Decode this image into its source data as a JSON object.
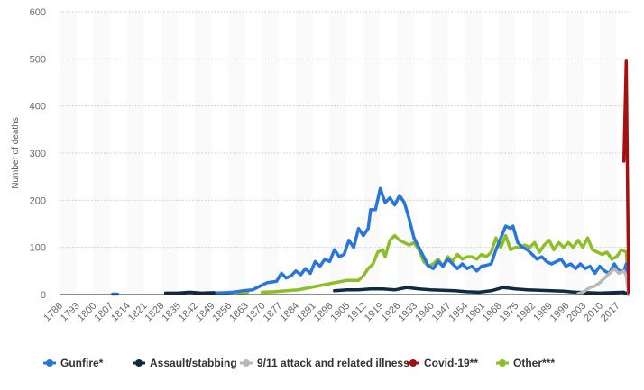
{
  "chart_data": {
    "type": "line",
    "title": "",
    "xlabel": "",
    "ylabel": "Number of deaths",
    "xlim": [
      1786,
      2022
    ],
    "ylim": [
      0,
      600
    ],
    "yticks": [
      0,
      100,
      200,
      300,
      400,
      500,
      600
    ],
    "xticks": [
      "1786",
      "1793",
      "1800",
      "1807",
      "1814",
      "1821",
      "1828",
      "1835",
      "1842",
      "1849",
      "1856",
      "1863",
      "1870",
      "1877",
      "1884",
      "1891",
      "1898",
      "1905",
      "1912",
      "1919",
      "1926",
      "1933",
      "1940",
      "1947",
      "1954",
      "1961",
      "1968",
      "1975",
      "1982",
      "1989",
      "1996",
      "2003",
      "2010",
      "2017"
    ],
    "grid": true,
    "legend_position": "bottom",
    "series": [
      {
        "name": "Gunfire*",
        "color": "#2876dd",
        "points": [
          [
            1791,
            1
          ],
          [
            1808,
            1
          ],
          [
            1810,
            1
          ],
          [
            1850,
            3
          ],
          [
            1855,
            4
          ],
          [
            1858,
            5
          ],
          [
            1862,
            8
          ],
          [
            1866,
            10
          ],
          [
            1870,
            20
          ],
          [
            1872,
            25
          ],
          [
            1876,
            28
          ],
          [
            1878,
            45
          ],
          [
            1880,
            35
          ],
          [
            1882,
            40
          ],
          [
            1884,
            50
          ],
          [
            1886,
            42
          ],
          [
            1888,
            55
          ],
          [
            1890,
            45
          ],
          [
            1892,
            70
          ],
          [
            1894,
            60
          ],
          [
            1896,
            75
          ],
          [
            1898,
            70
          ],
          [
            1900,
            95
          ],
          [
            1902,
            80
          ],
          [
            1904,
            85
          ],
          [
            1906,
            115
          ],
          [
            1908,
            100
          ],
          [
            1910,
            140
          ],
          [
            1912,
            125
          ],
          [
            1914,
            140
          ],
          [
            1915,
            180
          ],
          [
            1917,
            180
          ],
          [
            1919,
            225
          ],
          [
            1921,
            195
          ],
          [
            1923,
            205
          ],
          [
            1925,
            190
          ],
          [
            1927,
            210
          ],
          [
            1929,
            195
          ],
          [
            1931,
            160
          ],
          [
            1933,
            120
          ],
          [
            1935,
            100
          ],
          [
            1937,
            80
          ],
          [
            1939,
            60
          ],
          [
            1941,
            55
          ],
          [
            1943,
            70
          ],
          [
            1945,
            60
          ],
          [
            1947,
            75
          ],
          [
            1949,
            65
          ],
          [
            1951,
            55
          ],
          [
            1953,
            65
          ],
          [
            1955,
            55
          ],
          [
            1957,
            60
          ],
          [
            1959,
            50
          ],
          [
            1961,
            60
          ],
          [
            1963,
            62
          ],
          [
            1965,
            65
          ],
          [
            1967,
            95
          ],
          [
            1969,
            120
          ],
          [
            1971,
            145
          ],
          [
            1973,
            140
          ],
          [
            1974,
            145
          ],
          [
            1976,
            110
          ],
          [
            1978,
            100
          ],
          [
            1980,
            95
          ],
          [
            1982,
            85
          ],
          [
            1984,
            75
          ],
          [
            1986,
            80
          ],
          [
            1988,
            70
          ],
          [
            1990,
            65
          ],
          [
            1992,
            70
          ],
          [
            1994,
            75
          ],
          [
            1996,
            60
          ],
          [
            1998,
            65
          ],
          [
            2000,
            55
          ],
          [
            2002,
            65
          ],
          [
            2004,
            55
          ],
          [
            2006,
            60
          ],
          [
            2008,
            45
          ],
          [
            2010,
            60
          ],
          [
            2012,
            50
          ],
          [
            2014,
            45
          ],
          [
            2016,
            65
          ],
          [
            2018,
            50
          ],
          [
            2020,
            50
          ],
          [
            2021,
            65
          ],
          [
            2022,
            5
          ]
        ]
      },
      {
        "name": "Assault/stabbing",
        "color": "#0f2a45",
        "points": [
          [
            1824,
            2
          ],
          [
            1830,
            3
          ],
          [
            1835,
            3
          ],
          [
            1840,
            5
          ],
          [
            1845,
            3
          ],
          [
            1850,
            4
          ],
          [
            1860,
            5
          ],
          [
            1870,
            4
          ],
          [
            1880,
            5
          ],
          [
            1890,
            6
          ],
          [
            1900,
            8
          ],
          [
            1905,
            10
          ],
          [
            1910,
            10
          ],
          [
            1915,
            12
          ],
          [
            1920,
            12
          ],
          [
            1925,
            10
          ],
          [
            1930,
            15
          ],
          [
            1935,
            12
          ],
          [
            1940,
            10
          ],
          [
            1945,
            9
          ],
          [
            1950,
            8
          ],
          [
            1955,
            6
          ],
          [
            1960,
            5
          ],
          [
            1965,
            8
          ],
          [
            1970,
            15
          ],
          [
            1975,
            12
          ],
          [
            1980,
            10
          ],
          [
            1985,
            9
          ],
          [
            1990,
            8
          ],
          [
            1995,
            7
          ],
          [
            2000,
            5
          ],
          [
            2005,
            4
          ],
          [
            2010,
            3
          ],
          [
            2015,
            4
          ],
          [
            2020,
            5
          ],
          [
            2022,
            0
          ]
        ]
      },
      {
        "name": "9/11 attack and related illness",
        "color": "#b8b8b8",
        "points": [
          [
            2001,
            2
          ],
          [
            2003,
            5
          ],
          [
            2006,
            15
          ],
          [
            2008,
            18
          ],
          [
            2010,
            25
          ],
          [
            2013,
            40
          ],
          [
            2016,
            55
          ],
          [
            2018,
            45
          ],
          [
            2020,
            50
          ],
          [
            2021,
            40
          ],
          [
            2022,
            0
          ]
        ]
      },
      {
        "name": "Covid-19**",
        "color": "#a50f0f",
        "points": [
          [
            2020,
            283
          ],
          [
            2021,
            495
          ],
          [
            2022,
            5
          ]
        ]
      },
      {
        "name": "Other***",
        "color": "#8cbf26",
        "points": [
          [
            1850,
            3
          ],
          [
            1860,
            4
          ],
          [
            1864,
            5
          ],
          [
            1870,
            5
          ],
          [
            1875,
            6
          ],
          [
            1880,
            8
          ],
          [
            1885,
            10
          ],
          [
            1890,
            15
          ],
          [
            1895,
            20
          ],
          [
            1900,
            25
          ],
          [
            1905,
            30
          ],
          [
            1910,
            30
          ],
          [
            1912,
            40
          ],
          [
            1914,
            55
          ],
          [
            1916,
            65
          ],
          [
            1918,
            90
          ],
          [
            1920,
            95
          ],
          [
            1921,
            80
          ],
          [
            1923,
            115
          ],
          [
            1925,
            125
          ],
          [
            1927,
            115
          ],
          [
            1929,
            110
          ],
          [
            1931,
            105
          ],
          [
            1933,
            110
          ],
          [
            1935,
            95
          ],
          [
            1937,
            70
          ],
          [
            1939,
            60
          ],
          [
            1941,
            65
          ],
          [
            1943,
            75
          ],
          [
            1945,
            60
          ],
          [
            1947,
            80
          ],
          [
            1949,
            70
          ],
          [
            1951,
            85
          ],
          [
            1953,
            75
          ],
          [
            1955,
            80
          ],
          [
            1957,
            80
          ],
          [
            1959,
            75
          ],
          [
            1961,
            85
          ],
          [
            1963,
            80
          ],
          [
            1965,
            90
          ],
          [
            1967,
            120
          ],
          [
            1969,
            100
          ],
          [
            1971,
            125
          ],
          [
            1973,
            95
          ],
          [
            1975,
            100
          ],
          [
            1977,
            100
          ],
          [
            1979,
            105
          ],
          [
            1981,
            100
          ],
          [
            1983,
            110
          ],
          [
            1985,
            90
          ],
          [
            1987,
            105
          ],
          [
            1989,
            115
          ],
          [
            1991,
            95
          ],
          [
            1993,
            110
          ],
          [
            1995,
            100
          ],
          [
            1997,
            110
          ],
          [
            1999,
            100
          ],
          [
            2001,
            115
          ],
          [
            2003,
            100
          ],
          [
            2005,
            120
          ],
          [
            2007,
            95
          ],
          [
            2009,
            90
          ],
          [
            2011,
            85
          ],
          [
            2013,
            90
          ],
          [
            2015,
            75
          ],
          [
            2017,
            80
          ],
          [
            2019,
            95
          ],
          [
            2021,
            90
          ],
          [
            2022,
            5
          ]
        ]
      }
    ]
  }
}
